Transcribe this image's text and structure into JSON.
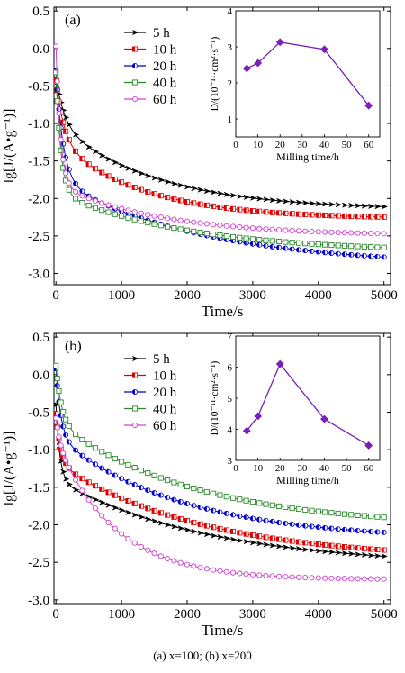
{
  "caption": "(a) x=100; (b) x=200",
  "chart_data": [
    {
      "panel_label": "(a)",
      "type": "line",
      "xlabel": "Time/s",
      "ylabel": "lg[J/(A•g⁻¹)]",
      "xlim": [
        -30,
        5100
      ],
      "ylim": [
        -3.15,
        0.55
      ],
      "xticks": [
        0,
        1000,
        2000,
        3000,
        4000,
        5000
      ],
      "yticks": [
        0.5,
        0.0,
        -0.5,
        -1.0,
        -1.5,
        -2.0,
        -2.5,
        -3.0
      ],
      "ytick_labels": [
        "0.5",
        "0.0",
        "-0.5",
        "-1.0",
        "-1.5",
        "-2.0",
        "-2.5",
        "-3.0"
      ],
      "legend_position": "top-left",
      "series": [
        {
          "name": "5 h",
          "color": "#000000",
          "marker": "diamond-right",
          "start": -0.4,
          "fast": 0.6,
          "fast_tau": 130,
          "slow": 1.15,
          "slow_tau": 1500
        },
        {
          "name": "10 h",
          "color": "#e00000",
          "marker": "square-half",
          "start": -0.42,
          "fast": 0.8,
          "fast_tau": 120,
          "slow": 1.05,
          "slow_tau": 1300
        },
        {
          "name": "20 h",
          "color": "#0000cc",
          "marker": "circle-half",
          "start": -0.3,
          "fast": 1.45,
          "fast_tau": 110,
          "slow": 1.15,
          "slow_tau": 2200
        },
        {
          "name": "40 h",
          "color": "#2a8a2a",
          "marker": "square-open",
          "start": -0.32,
          "fast": 1.6,
          "fast_tau": 75,
          "slow": 0.8,
          "slow_tau": 2000
        },
        {
          "name": "60 h",
          "color": "#d040d0",
          "marker": "circle-open",
          "start": 0.03,
          "fast": 1.85,
          "fast_tau": 70,
          "slow": 0.68,
          "slow_tau": 1600
        }
      ],
      "inset": {
        "type": "line",
        "xlabel": "Milling time/h",
        "ylabel": "D/(10⁻¹¹·cm²·s⁻¹)",
        "xlim": [
          0,
          65
        ],
        "ylim": [
          0.5,
          4.0
        ],
        "xticks": [
          0,
          10,
          20,
          30,
          40,
          50,
          60
        ],
        "yticks": [
          1,
          2,
          3,
          4
        ],
        "color": "#7a1fb8",
        "x": [
          5,
          10,
          20,
          40,
          60
        ],
        "y": [
          2.4,
          2.55,
          3.13,
          2.93,
          1.37
        ]
      }
    },
    {
      "panel_label": "(b)",
      "type": "line",
      "xlabel": "Time/s",
      "ylabel": "lg[J/(A•g⁻¹)]",
      "xlim": [
        -30,
        5100
      ],
      "ylim": [
        -3.05,
        0.55
      ],
      "xticks": [
        0,
        1000,
        2000,
        3000,
        4000,
        5000
      ],
      "yticks": [
        0.5,
        0.0,
        -0.5,
        -1.0,
        -1.5,
        -2.0,
        -2.5,
        -3.0
      ],
      "ytick_labels": [
        "0.5",
        "0.0",
        "-0.5",
        "-1.0",
        "-1.5",
        "-2.0",
        "-2.5",
        "-3.0"
      ],
      "legend_position": "top-left",
      "series": [
        {
          "name": "5 h",
          "color": "#000000",
          "marker": "diamond-right",
          "start": -0.4,
          "fast": 1.0,
          "fast_tau": 60,
          "slow": 1.15,
          "slow_tau": 2300
        },
        {
          "name": "10 h",
          "color": "#e00000",
          "marker": "square-half",
          "start": -0.52,
          "fast": 0.65,
          "fast_tau": 70,
          "slow": 1.3,
          "slow_tau": 2200
        },
        {
          "name": "20 h",
          "color": "#0000cc",
          "marker": "circle-half",
          "start": 0.08,
          "fast": 0.9,
          "fast_tau": 75,
          "slow": 1.38,
          "slow_tau": 1900
        },
        {
          "name": "40 h",
          "color": "#2a8a2a",
          "marker": "square-open",
          "start": 0.12,
          "fast": 0.75,
          "fast_tau": 85,
          "slow": 1.4,
          "slow_tau": 2100
        },
        {
          "name": "60 h",
          "color": "#d040d0",
          "marker": "circle-open",
          "start": -0.58,
          "fast": 0.3,
          "fast_tau": 60,
          "slow": 1.85,
          "slow_tau": 900
        }
      ],
      "inset": {
        "type": "line",
        "xlabel": "Milling time/h",
        "ylabel": "D/(10⁻¹¹·cm²·s⁻¹)",
        "xlim": [
          0,
          65
        ],
        "ylim": [
          3.0,
          7.0
        ],
        "xticks": [
          0,
          10,
          20,
          30,
          40,
          50,
          60
        ],
        "yticks": [
          3,
          4,
          5,
          6,
          7
        ],
        "color": "#7a1fb8",
        "x": [
          5,
          10,
          20,
          40,
          60
        ],
        "y": [
          3.95,
          4.42,
          6.1,
          4.33,
          3.48
        ]
      }
    }
  ]
}
